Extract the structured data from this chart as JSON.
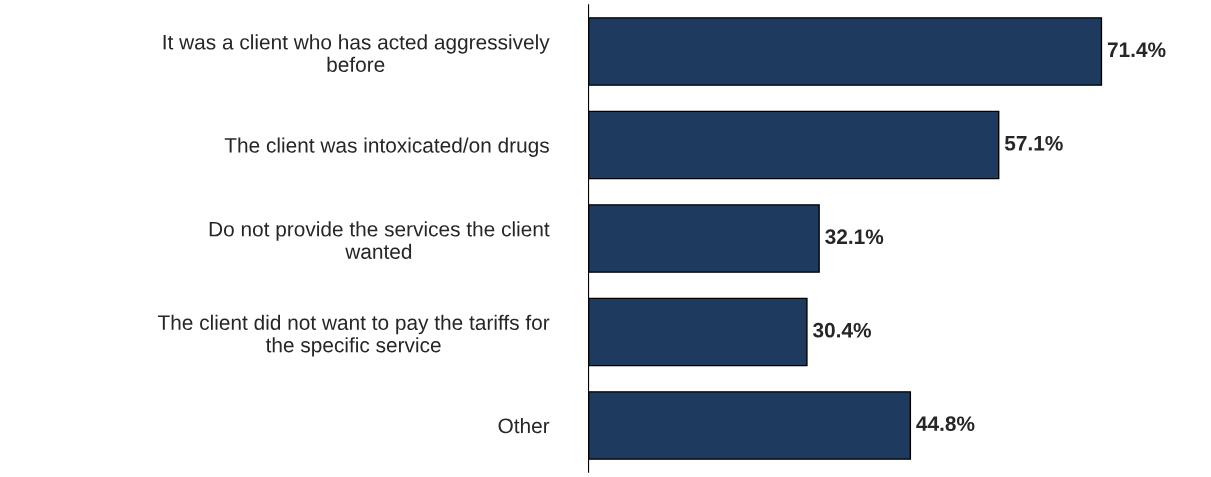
{
  "chart_data": {
    "type": "bar",
    "orientation": "horizontal",
    "categories": [
      "It was a client who has acted aggressively\nbefore",
      "The client was intoxicated/on drugs",
      "Do not provide the services the client\nwanted",
      "The client did not want to pay the tariffs for\nthe specific service",
      "Other"
    ],
    "values": [
      71.4,
      57.1,
      32.1,
      30.4,
      44.8
    ],
    "value_labels": [
      "71.4%",
      "57.1%",
      "32.1%",
      "30.4%",
      "44.8%"
    ],
    "color": "#1f3a5f"
  }
}
